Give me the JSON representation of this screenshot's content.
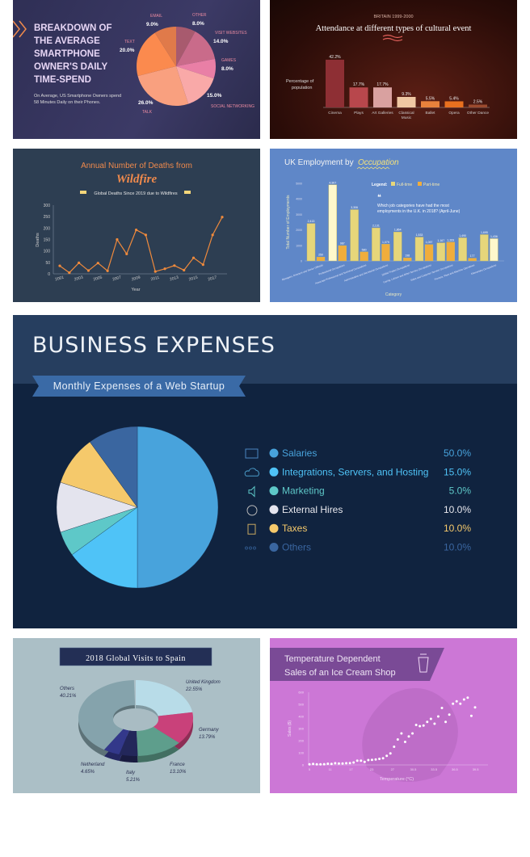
{
  "chart_data": [
    {
      "id": "smartphone",
      "type": "pie",
      "title": "BREAKDOWN OF THE AVERAGE SMARTPHONE OWNER'S DAILY TIME-SPEND",
      "subtitle": "On Average, US Smartphone Owners spend 58 Minutes Daily on their Phones.",
      "slices": [
        {
          "label": "OTHER",
          "value": 8.0,
          "display": "8.0%",
          "color": "#a85a6e"
        },
        {
          "label": "VISIT WEBSITES",
          "value": 14.0,
          "display": "14.0%",
          "color": "#c96b8a"
        },
        {
          "label": "GAMES",
          "value": 8.0,
          "display": "8.0%",
          "color": "#e97fa6"
        },
        {
          "label": "SOCIAL NETWORKING",
          "value": 15.0,
          "display": "15.0%",
          "color": "#f9a9a8"
        },
        {
          "label": "TALK",
          "value": 26.0,
          "display": "26.0%",
          "color": "#f9a07f"
        },
        {
          "label": "TEXT",
          "value": 20.0,
          "display": "20.0%",
          "color": "#fb8a4e"
        },
        {
          "label": "EMAIL",
          "value": 9.0,
          "display": "9.0%",
          "color": "#e07a4a"
        }
      ]
    },
    {
      "id": "cultural",
      "type": "bar",
      "kicker": "BRITAIN 1999-2000",
      "title": "Attendance at different types of cultural event",
      "ylabel": "Percentage of population",
      "categories": [
        "Cinema",
        "Plays",
        "Art Galleries",
        "Classical Music",
        "Ballet",
        "Opera",
        "Other Dance"
      ],
      "values": [
        42.2,
        17.7,
        17.7,
        9.3,
        5.5,
        5.4,
        2.5
      ],
      "labels": [
        "42.2%",
        "17.7%",
        "17.7%",
        "9.3%",
        "5.5%",
        "5.4%",
        "2.5%"
      ],
      "colors": [
        "#8e2f34",
        "#b8474c",
        "#d9a1a0",
        "#efc8a3",
        "#e8823c",
        "#e8701f",
        "#9a4a2e"
      ]
    },
    {
      "id": "wildfire",
      "type": "line",
      "title": "Annual Number of Deaths from",
      "title_emphasis": "Wildfire",
      "legend": "Global Deaths Since 2019 due to Wildfires",
      "xlabel": "Year",
      "ylabel": "Deaths",
      "ylim": [
        0,
        300
      ],
      "yticks": [
        0,
        50,
        100,
        150,
        200,
        250,
        300
      ],
      "xticks": [
        2001,
        2003,
        2005,
        2007,
        2009,
        2011,
        2013,
        2015,
        2017
      ],
      "x": [
        2001,
        2002,
        2003,
        2004,
        2005,
        2006,
        2007,
        2008,
        2009,
        2010,
        2011,
        2012,
        2013,
        2014,
        2015,
        2016,
        2017,
        2018
      ],
      "y": [
        35,
        5,
        48,
        14,
        47,
        13,
        150,
        87,
        192,
        170,
        10,
        22,
        36,
        16,
        70,
        40,
        170,
        248
      ],
      "color": "#f08a3c"
    },
    {
      "id": "uk-employment",
      "type": "bar",
      "title": "UK Employment by",
      "title_emphasis": "Occupation",
      "quote": "Which job categories have had the most employments in the U.K. in 2018? (April-June)",
      "legend_title": "Legend:",
      "xlabel": "Category",
      "ylabel": "Total Number of Employments",
      "ylim": [
        0,
        5000
      ],
      "yticks": [
        0,
        1000,
        2000,
        3000,
        4000,
        5000
      ],
      "categories": [
        "Managers, Directors and Senior Officials",
        "Professional Occupations",
        "Associate Professional and Technical Occupations",
        "Administrative and Secretarial Occupations",
        "Skilled Trades Occupations",
        "Caring, Leisure and Other Service Occupations",
        "Sales and Customer Service Occupations",
        "Process, Plant and Machine Operatives",
        "Elementary Occupations"
      ],
      "series": [
        {
          "name": "Full-time",
          "color": "#e6d67a",
          "values": [
            2413,
            4907,
            3306,
            2131,
            1864,
            1533,
            1167,
            1490,
            1695
          ]
        },
        {
          "name": "Part-time",
          "color": "#f0ad3c",
          "values": [
            250,
            987,
            580,
            1079,
            198,
            1057,
            1209,
            177,
            1436
          ]
        }
      ]
    },
    {
      "id": "business",
      "type": "pie",
      "title": "BUSINESS EXPENSES",
      "subtitle": "Monthly Expenses of a Web Startup",
      "slices": [
        {
          "label": "Salaries",
          "value": 50.0,
          "display": "50.0%",
          "color": "#48a3dc",
          "icon": "calculator-icon"
        },
        {
          "label": "Integrations, Servers, and Hosting",
          "value": 15.0,
          "display": "15.0%",
          "color": "#4fc3f7",
          "icon": "cloud-icon"
        },
        {
          "label": "Marketing",
          "value": 5.0,
          "display": "5.0%",
          "color": "#5ec8c8",
          "icon": "speaker-icon"
        },
        {
          "label": "External Hires",
          "value": 10.0,
          "display": "10.0%",
          "color": "#e4e4ee",
          "icon": "user-globe-icon"
        },
        {
          "label": "Taxes",
          "value": 10.0,
          "display": "10.0%",
          "color": "#f5c96b",
          "icon": "document-icon"
        },
        {
          "label": "Others",
          "value": 10.0,
          "display": "10.0%",
          "color": "#3a66a0",
          "icon": "ellipsis-icon"
        }
      ]
    },
    {
      "id": "spain",
      "type": "pie",
      "variant": "3d-donut",
      "title": "2018 Global Visits to Spain",
      "slices": [
        {
          "label": "United Kingdom",
          "value": 22.55,
          "display": "22.55%",
          "color": "#b8dce8"
        },
        {
          "label": "Germany",
          "value": 13.79,
          "display": "13.79%",
          "color": "#c9417a"
        },
        {
          "label": "France",
          "value": 13.1,
          "display": "13.10%",
          "color": "#5e9e8c"
        },
        {
          "label": "Italy",
          "value": 5.21,
          "display": "5.21%",
          "color": "#23275a"
        },
        {
          "label": "Netherland",
          "value": 4.65,
          "display": "4.65%",
          "color": "#33388a"
        },
        {
          "label": "Others",
          "value": 40.21,
          "display": "40.21%",
          "color": "#85a3ac"
        }
      ]
    },
    {
      "id": "icecream",
      "type": "scatter",
      "title": "Temperature Dependent Sales of an Ice Cream Shop",
      "xlabel": "Temperature (°C)",
      "ylabel": "Sales ($)",
      "ylim": [
        0,
        600
      ],
      "yticks": [
        0,
        100,
        200,
        300,
        400,
        500,
        600
      ],
      "xticks": [
        "5",
        "11",
        "17",
        "23",
        "27",
        "30.5",
        "33.5",
        "36.5",
        "39.5"
      ],
      "y": [
        5,
        8,
        5,
        5,
        6,
        10,
        8,
        14,
        12,
        12,
        14,
        15,
        20,
        35,
        35,
        25,
        40,
        42,
        45,
        50,
        55,
        75,
        95,
        150,
        210,
        260,
        190,
        235,
        260,
        330,
        320,
        325,
        355,
        380,
        340,
        400,
        470,
        355,
        415,
        505,
        525,
        505,
        540,
        555,
        405,
        475
      ],
      "color": "#ffffff"
    }
  ]
}
